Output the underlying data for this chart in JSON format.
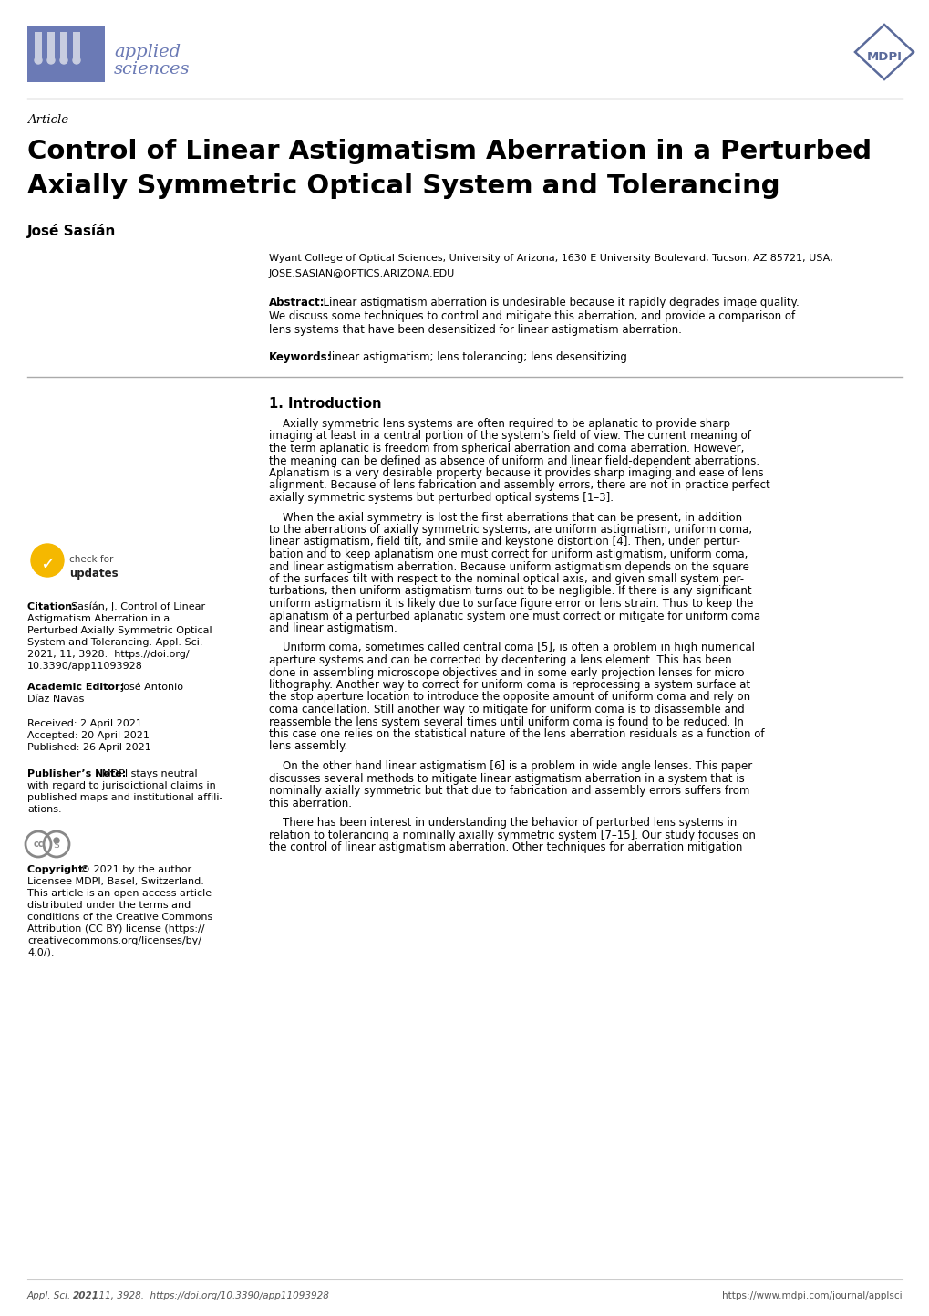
{
  "page_bg": "#ffffff",
  "header_logo_color": "#6b7ab5",
  "mdpi_border_color": "#5a6a9a",
  "article_label": "Article",
  "title_line1": "Control of Linear Astigmatism Aberration in a Perturbed",
  "title_line2": "Axially Symmetric Optical System and Tolerancing",
  "author": "José Sasíán",
  "affiliation_line1": "Wyant College of Optical Sciences, University of Arizona, 1630 E University Boulevard, Tucson, AZ 85721, USA;",
  "affiliation_line2": "JOSE.SASIAN@OPTICS.ARIZONA.EDU",
  "abstract_bold": "Abstract:",
  "abstract_body": "  Linear astigmatism aberration is undesirable because it rapidly degrades image quality. We discuss some techniques to control and mitigate this aberration, and provide a comparison of lens systems that have been desensitized for linear astigmatism aberration.",
  "keywords_bold": "Keywords:",
  "keywords_body": "  linear astigmatism; lens tolerancing; lens desensitizing",
  "section1_title": "1. Introduction",
  "para1_indent": "    Axially symmetric lens systems are often required to be aplanatic to provide sharp imaging at least in a central portion of the system’s field of view. The current meaning of the term aplanatic is freedom from spherical aberration and coma aberration. However, the meaning can be defined as absence of uniform and linear field-dependent aberrations. Aplanatism is a very desirable property because it provides sharp imaging and ease of lens alignment. Because of lens fabrication and assembly errors, there are not in practice perfect axially symmetric systems but perturbed optical systems [1–3].",
  "para2_indent": "    When the axial symmetry is lost the first aberrations that can be present, in addition to the aberrations of axially symmetric systems, are uniform astigmatism, uniform coma, linear astigmatism, field tilt, and smile and keystone distortion [4]. Then, under pertur-bation and to keep aplanatism one must correct for uniform astigmatism, uniform coma, and linear astigmatism aberration. Because uniform astigmatism depends on the square of the surfaces tilt with respect to the nominal optical axis, and given small system per-turbations, then uniform astigmatism turns out to be negligible. If there is any significant uniform astigmatism it is likely due to surface figure error or lens strain. Thus to keep the aplanatism of a perturbed aplanatic system one must correct or mitigate for uniform coma and linear astigmatism.",
  "para3_indent": "    Uniform coma, sometimes called central coma [5], is often a problem in high numerical aperture systems and can be corrected by decentering a lens element. This has been done in assembling microscope objectives and in some early projection lenses for micro lithography. Another way to correct for uniform coma is reprocessing a system surface at the stop aperture location to introduce the opposite amount of uniform coma and rely on coma cancellation. Still another way to mitigate for uniform coma is to disassemble and reassemble the lens system several times until uniform coma is found to be reduced. In this case one relies on the statistical nature of the lens aberration residuals as a function of lens assembly.",
  "para4_indent": "    On the other hand linear astigmatism [6] is a problem in wide angle lenses. This paper discusses several methods to mitigate linear astigmatism aberration in a system that is nominally axially symmetric but that due to fabrication and assembly errors suffers from this aberration.",
  "para5_indent": "    There has been interest in understanding the behavior of perturbed lens systems in relation to tolerancing a nominally axially symmetric system [7–15]. Our study focuses on the control of linear astigmatism aberration. Other techniques for aberration mitigation",
  "citation_bold": "Citation: ",
  "citation_body": "Sasíán, J. Control of Linear Astigmatism Aberration in a Perturbed Axially Symmetric Optical System and Tolerancing. Appl. Sci. 2021, 11, 3928.  https://doi.org/10.3390/app11093928",
  "acad_editor_bold": "Academic Editor: ",
  "acad_editor_body": "José Antonio Díaz Navas",
  "received": "Received: 2 April 2021",
  "accepted": "Accepted: 20 April 2021",
  "published": "Published: 26 April 2021",
  "publisher_bold": "Publisher’s Note: ",
  "publisher_body": "MDPI stays neutral with regard to jurisdictional claims in published maps and institutional affili-ations.",
  "copyright_bold": "Copyright: ",
  "copyright_body": "© 2021 by the author. Licensee MDPI, Basel, Switzerland. This article is an open access article distributed under the terms and conditions of the Creative Commons Attribution (CC BY) license (https://creativecommons.org/licenses/by/4.0/).",
  "footer_left": "Appl. Sci. ",
  "footer_left2": "2021",
  "footer_left3": ", 11, 3928.  https://doi.org/10.3390/app11093928",
  "footer_right": "https://www.mdpi.com/journal/applsci",
  "logo_text1": "applied",
  "logo_text2": "sciences"
}
